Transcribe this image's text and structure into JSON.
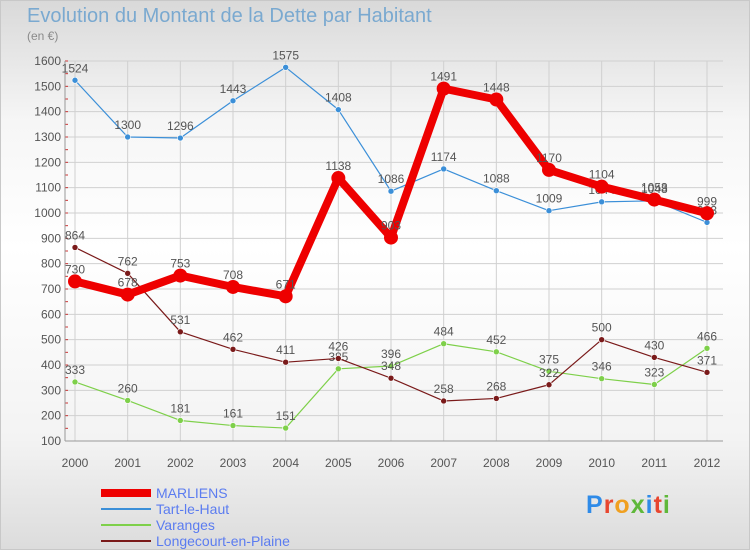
{
  "header": {
    "title": "Evolution du Montant de la Dette par Habitant",
    "unit": "(en €)"
  },
  "logo": {
    "text": "Proxiti",
    "colors": [
      "#2f8be8",
      "#e8462f",
      "#f0a020",
      "#5fb83a",
      "#2f8be8",
      "#e8462f",
      "#5fb83a"
    ]
  },
  "colors": {
    "MARLIENS": "#ee0000",
    "Tart-le-Haut": "#3b8fd8",
    "Varanges": "#7ed04a",
    "Longecourt-en-Plaine": "#7a1a1a"
  },
  "chart_data": {
    "type": "line",
    "title": "Evolution du Montant de la Dette par Habitant",
    "ylabel": "(en €)",
    "x": [
      "2000",
      "2001",
      "2002",
      "2003",
      "2004",
      "2005",
      "2006",
      "2007",
      "2008",
      "2009",
      "2010",
      "2011",
      "2012"
    ],
    "ylim": [
      100,
      1600
    ],
    "yticks": [
      100,
      200,
      300,
      400,
      500,
      600,
      700,
      800,
      900,
      1000,
      1100,
      1200,
      1300,
      1400,
      1500,
      1600
    ],
    "grid": true,
    "legend": "bottom-left",
    "series": [
      {
        "name": "Tart-le-Haut",
        "color": "#3b8fd8",
        "values": [
          1524,
          1300,
          1296,
          1443,
          1575,
          1408,
          1086,
          1174,
          1088,
          1009,
          1044,
          1048,
          963
        ]
      },
      {
        "name": "Varanges",
        "color": "#7ed04a",
        "values": [
          333,
          260,
          181,
          161,
          151,
          385,
          396,
          484,
          452,
          375,
          346,
          323,
          466
        ]
      },
      {
        "name": "Longecourt-en-Plaine",
        "color": "#7a1a1a",
        "values": [
          864,
          762,
          531,
          462,
          411,
          426,
          348,
          258,
          268,
          322,
          500,
          430,
          371
        ]
      },
      {
        "name": "MARLIENS",
        "color": "#ee0000",
        "values": [
          730,
          678,
          753,
          708,
          671,
          1138,
          903,
          1491,
          1448,
          1170,
          1104,
          1053,
          999
        ]
      }
    ]
  }
}
